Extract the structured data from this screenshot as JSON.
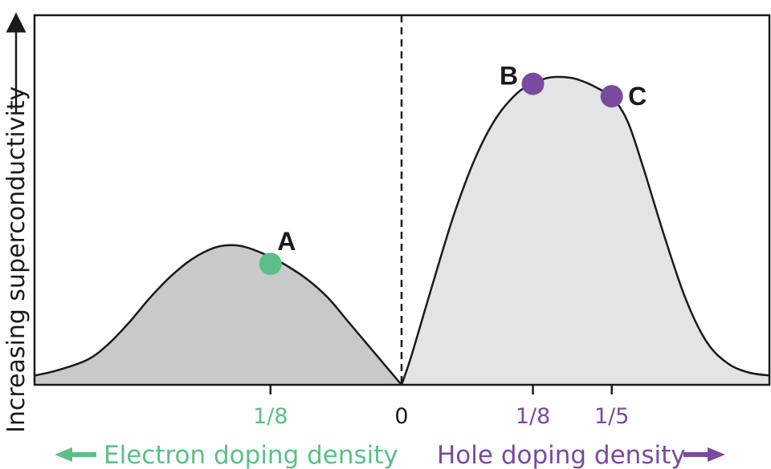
{
  "chart_data": {
    "type": "area",
    "ylabel": "Increasing superconductivity",
    "colors": {
      "electron": "#5bbf8a",
      "hole": "#7a4a9e",
      "electron_fill": "#c8caca",
      "hole_fill": "#e3e4e4",
      "ink": "#1a1a1a"
    },
    "x_ticks": [
      {
        "value": -0.125,
        "label": "1/8",
        "side": "electron"
      },
      {
        "value": 0,
        "label": "0",
        "side": "neutral"
      },
      {
        "value": 0.125,
        "label": "1/8",
        "side": "hole"
      },
      {
        "value": 0.2,
        "label": "1/5",
        "side": "hole"
      }
    ],
    "xlim": [
      -0.35,
      0.35
    ],
    "ylim": [
      0,
      1
    ],
    "series": [
      {
        "side": "electron",
        "x": [
          -0.35,
          -0.33,
          -0.3,
          -0.28,
          -0.26,
          -0.24,
          -0.22,
          -0.2,
          -0.18,
          -0.165,
          -0.15,
          -0.13,
          -0.11,
          -0.09,
          -0.07,
          -0.05,
          -0.03,
          -0.015,
          0
        ],
        "y": [
          0.03,
          0.045,
          0.08,
          0.13,
          0.2,
          0.28,
          0.35,
          0.405,
          0.44,
          0.45,
          0.445,
          0.42,
          0.385,
          0.34,
          0.28,
          0.2,
          0.12,
          0.06,
          0
        ]
      },
      {
        "side": "hole",
        "x": [
          0,
          0.01,
          0.03,
          0.05,
          0.07,
          0.09,
          0.11,
          0.125,
          0.14,
          0.16,
          0.175,
          0.19,
          0.2,
          0.215,
          0.23,
          0.25,
          0.27,
          0.29,
          0.31,
          0.33,
          0.35
        ],
        "y": [
          0,
          0.1,
          0.33,
          0.55,
          0.73,
          0.86,
          0.94,
          0.97,
          0.99,
          0.99,
          0.975,
          0.95,
          0.93,
          0.85,
          0.7,
          0.48,
          0.28,
          0.14,
          0.07,
          0.04,
          0.03
        ]
      }
    ],
    "points": [
      {
        "label": "A",
        "x": -0.125,
        "y": 0.39,
        "side": "electron"
      },
      {
        "label": "B",
        "x": 0.125,
        "y": 0.97,
        "side": "hole"
      },
      {
        "label": "C",
        "x": 0.2,
        "y": 0.93,
        "side": "hole"
      }
    ],
    "xlabels": {
      "electron": "Electron doping density",
      "hole": "Hole doping density"
    }
  }
}
